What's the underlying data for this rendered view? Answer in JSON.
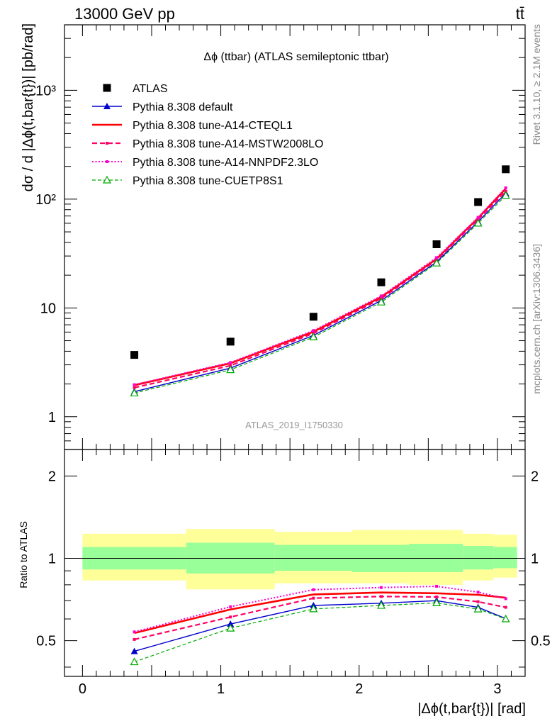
{
  "header": {
    "left": "13000 GeV pp",
    "right": "tt̄",
    "side_rivet": "Rivet 3.1.10, ≥ 2.1M events",
    "side_mcplots": "mcplots.cern.ch [arXiv:1306.3436]"
  },
  "chart_data": [
    {
      "type": "line",
      "title": "Δϕ (ttbar) (ATLAS semileptonic ttbar)",
      "ylabel": "dσ / d |Δϕ(t,bar{t})| [pb/rad]",
      "yscale": "log",
      "ylim": [
        0.5,
        4000
      ],
      "yticks": [
        {
          "v": 1,
          "label": "1"
        },
        {
          "v": 10,
          "label": "10"
        },
        {
          "v": 100,
          "label": "10²"
        },
        {
          "v": 1000,
          "label": "10³"
        }
      ],
      "xlim": [
        -0.13,
        3.2
      ],
      "watermark": "ATLAS_2019_I1750330",
      "legend_position": "top-left",
      "x": [
        0.375,
        1.07,
        1.67,
        2.16,
        2.56,
        2.86,
        3.06
      ],
      "data": {
        "name": "ATLAS",
        "values": [
          3.7,
          4.9,
          8.3,
          17.2,
          38.5,
          94,
          188
        ]
      },
      "series": [
        {
          "name": "Pythia 8.308 default",
          "color": "#0000cc",
          "dash": "solid",
          "marker": "triangle-filled",
          "values": [
            1.7,
            2.8,
            5.6,
            11.7,
            26.5,
            62,
            113
          ]
        },
        {
          "name": "Pythia 8.308 tune-A14-CTEQL1",
          "color": "#ff0000",
          "dash": "solid-thick",
          "marker": "none",
          "values": [
            1.95,
            3.1,
            6.05,
            12.6,
            28.2,
            67,
            125
          ]
        },
        {
          "name": "Pythia 8.308 tune-A14-MSTW2008LO",
          "color": "#ff0066",
          "dash": "dashed",
          "marker": "small-square",
          "values": [
            1.85,
            2.95,
            5.85,
            12.2,
            27.6,
            65,
            118
          ]
        },
        {
          "name": "Pythia 8.308 tune-A14-NNPDF2.3LO",
          "color": "#ff00cc",
          "dash": "dotted",
          "marker": "small-square",
          "values": [
            1.97,
            3.15,
            6.2,
            12.9,
            29.0,
            68,
            127
          ]
        },
        {
          "name": "Pythia 8.308 tune-CUETP8S1",
          "color": "#00aa00",
          "dash": "dashed-thin",
          "marker": "triangle-open",
          "values": [
            1.65,
            2.7,
            5.4,
            11.3,
            25.8,
            60,
            108
          ]
        }
      ]
    },
    {
      "type": "line",
      "ylabel": "Ratio to ATLAS",
      "xlabel": "|Δϕ(t,bar{t})| [rad]",
      "yscale": "log",
      "ylim": [
        0.37,
        2.5
      ],
      "yticks": [
        {
          "v": 0.5,
          "label": "0.5"
        },
        {
          "v": 1,
          "label": "1"
        },
        {
          "v": 2,
          "label": "2"
        }
      ],
      "xlim": [
        -0.13,
        3.2
      ],
      "xticks": [
        {
          "v": 0,
          "label": "0"
        },
        {
          "v": 1,
          "label": "1"
        },
        {
          "v": 2,
          "label": "2"
        },
        {
          "v": 3,
          "label": "3"
        }
      ],
      "bands": [
        {
          "x0": 0.0,
          "x1": 0.75,
          "stat": [
            0.91,
            1.1
          ],
          "total": [
            0.83,
            1.23
          ]
        },
        {
          "x0": 0.75,
          "x1": 1.39,
          "stat": [
            0.88,
            1.14
          ],
          "total": [
            0.77,
            1.28
          ]
        },
        {
          "x0": 1.39,
          "x1": 1.95,
          "stat": [
            0.9,
            1.12
          ],
          "total": [
            0.81,
            1.25
          ]
        },
        {
          "x0": 1.95,
          "x1": 2.36,
          "stat": [
            0.89,
            1.12
          ],
          "total": [
            0.81,
            1.27
          ]
        },
        {
          "x0": 2.36,
          "x1": 2.75,
          "stat": [
            0.89,
            1.13
          ],
          "total": [
            0.8,
            1.27
          ]
        },
        {
          "x0": 2.75,
          "x1": 2.97,
          "stat": [
            0.91,
            1.11
          ],
          "total": [
            0.83,
            1.23
          ]
        },
        {
          "x0": 2.97,
          "x1": 3.1416,
          "stat": [
            0.92,
            1.1
          ],
          "total": [
            0.85,
            1.22
          ]
        }
      ],
      "x": [
        0.375,
        1.07,
        1.67,
        2.16,
        2.56,
        2.86,
        3.06
      ],
      "series": [
        {
          "name": "Pythia 8.308 default",
          "values": [
            0.457,
            0.575,
            0.672,
            0.685,
            0.7,
            0.662,
            0.602
          ]
        },
        {
          "name": "Pythia 8.308 tune-A14-CTEQL1",
          "values": [
            0.533,
            0.65,
            0.738,
            0.75,
            0.745,
            0.735,
            0.718
          ]
        },
        {
          "name": "Pythia 8.308 tune-A14-MSTW2008LO",
          "values": [
            0.505,
            0.61,
            0.715,
            0.725,
            0.722,
            0.694,
            0.662
          ]
        },
        {
          "name": "Pythia 8.308 tune-A14-NNPDF2.3LO",
          "values": [
            0.538,
            0.665,
            0.768,
            0.782,
            0.79,
            0.752,
            0.712
          ]
        },
        {
          "name": "Pythia 8.308 tune-CUETP8S1",
          "values": [
            0.418,
            0.555,
            0.653,
            0.672,
            0.687,
            0.652,
            0.6
          ]
        }
      ]
    }
  ]
}
